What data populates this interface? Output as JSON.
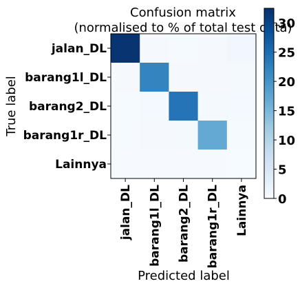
{
  "chart_data": {
    "type": "heatmap",
    "title_line1": "Confusion matrix",
    "title_line2": "(normalised to % of total test data)",
    "xlabel": "Predicted label",
    "ylabel": "True label",
    "rows": [
      "jalan_DL",
      "barang1l_DL",
      "barang2_DL",
      "barang1r_DL",
      "Lainnya"
    ],
    "cols": [
      "jalan_DL",
      "barang1l_DL",
      "barang2_DL",
      "barang1r_DL",
      "Lainnya"
    ],
    "values": [
      [
        32.0,
        0.4,
        0.3,
        0.4,
        0.9
      ],
      [
        0.4,
        22.0,
        0.4,
        0.4,
        0.5
      ],
      [
        0.3,
        0.6,
        24.0,
        0.5,
        0.6
      ],
      [
        0.3,
        0.4,
        0.5,
        17.0,
        0.3
      ],
      [
        0.2,
        0.2,
        0.2,
        0.2,
        0.1
      ]
    ],
    "colorbar": {
      "min": 0,
      "max": 32.5,
      "ticks": [
        0,
        5,
        10,
        15,
        20,
        25,
        30
      ],
      "tick_labels": [
        "0",
        "5",
        "10",
        "15",
        "20",
        "25",
        "30"
      ],
      "colormap": "Blues"
    }
  }
}
